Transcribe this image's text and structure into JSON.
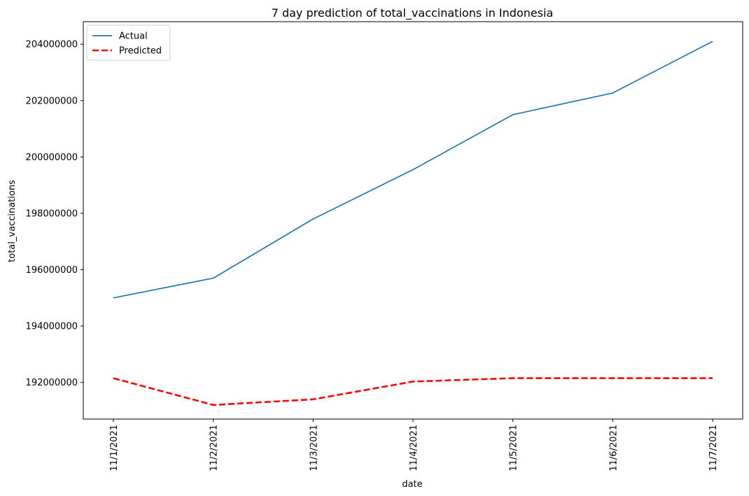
{
  "chart_data": {
    "type": "line",
    "title": "7 day prediction of total_vaccinations in Indonesia",
    "xlabel": "date",
    "ylabel": "total_vaccinations",
    "x": [
      "11/1/2021",
      "11/2/2021",
      "11/3/2021",
      "11/4/2021",
      "11/5/2021",
      "11/6/2021",
      "11/7/2021"
    ],
    "yticks": [
      "192000000",
      "194000000",
      "196000000",
      "198000000",
      "200000000",
      "202000000",
      "204000000"
    ],
    "ylim": [
      190700000,
      204800000
    ],
    "legend_position": "top-left",
    "grid": false,
    "series": [
      {
        "name": "Actual",
        "color": "#1f77b4",
        "style": "solid",
        "values": [
          195000000,
          195700000,
          197800000,
          199550000,
          201500000,
          202270000,
          204100000
        ]
      },
      {
        "name": "Predicted",
        "color": "#ff0000",
        "style": "dashed",
        "values": [
          192150000,
          191200000,
          191400000,
          192030000,
          192150000,
          192150000,
          192150000
        ]
      }
    ]
  }
}
